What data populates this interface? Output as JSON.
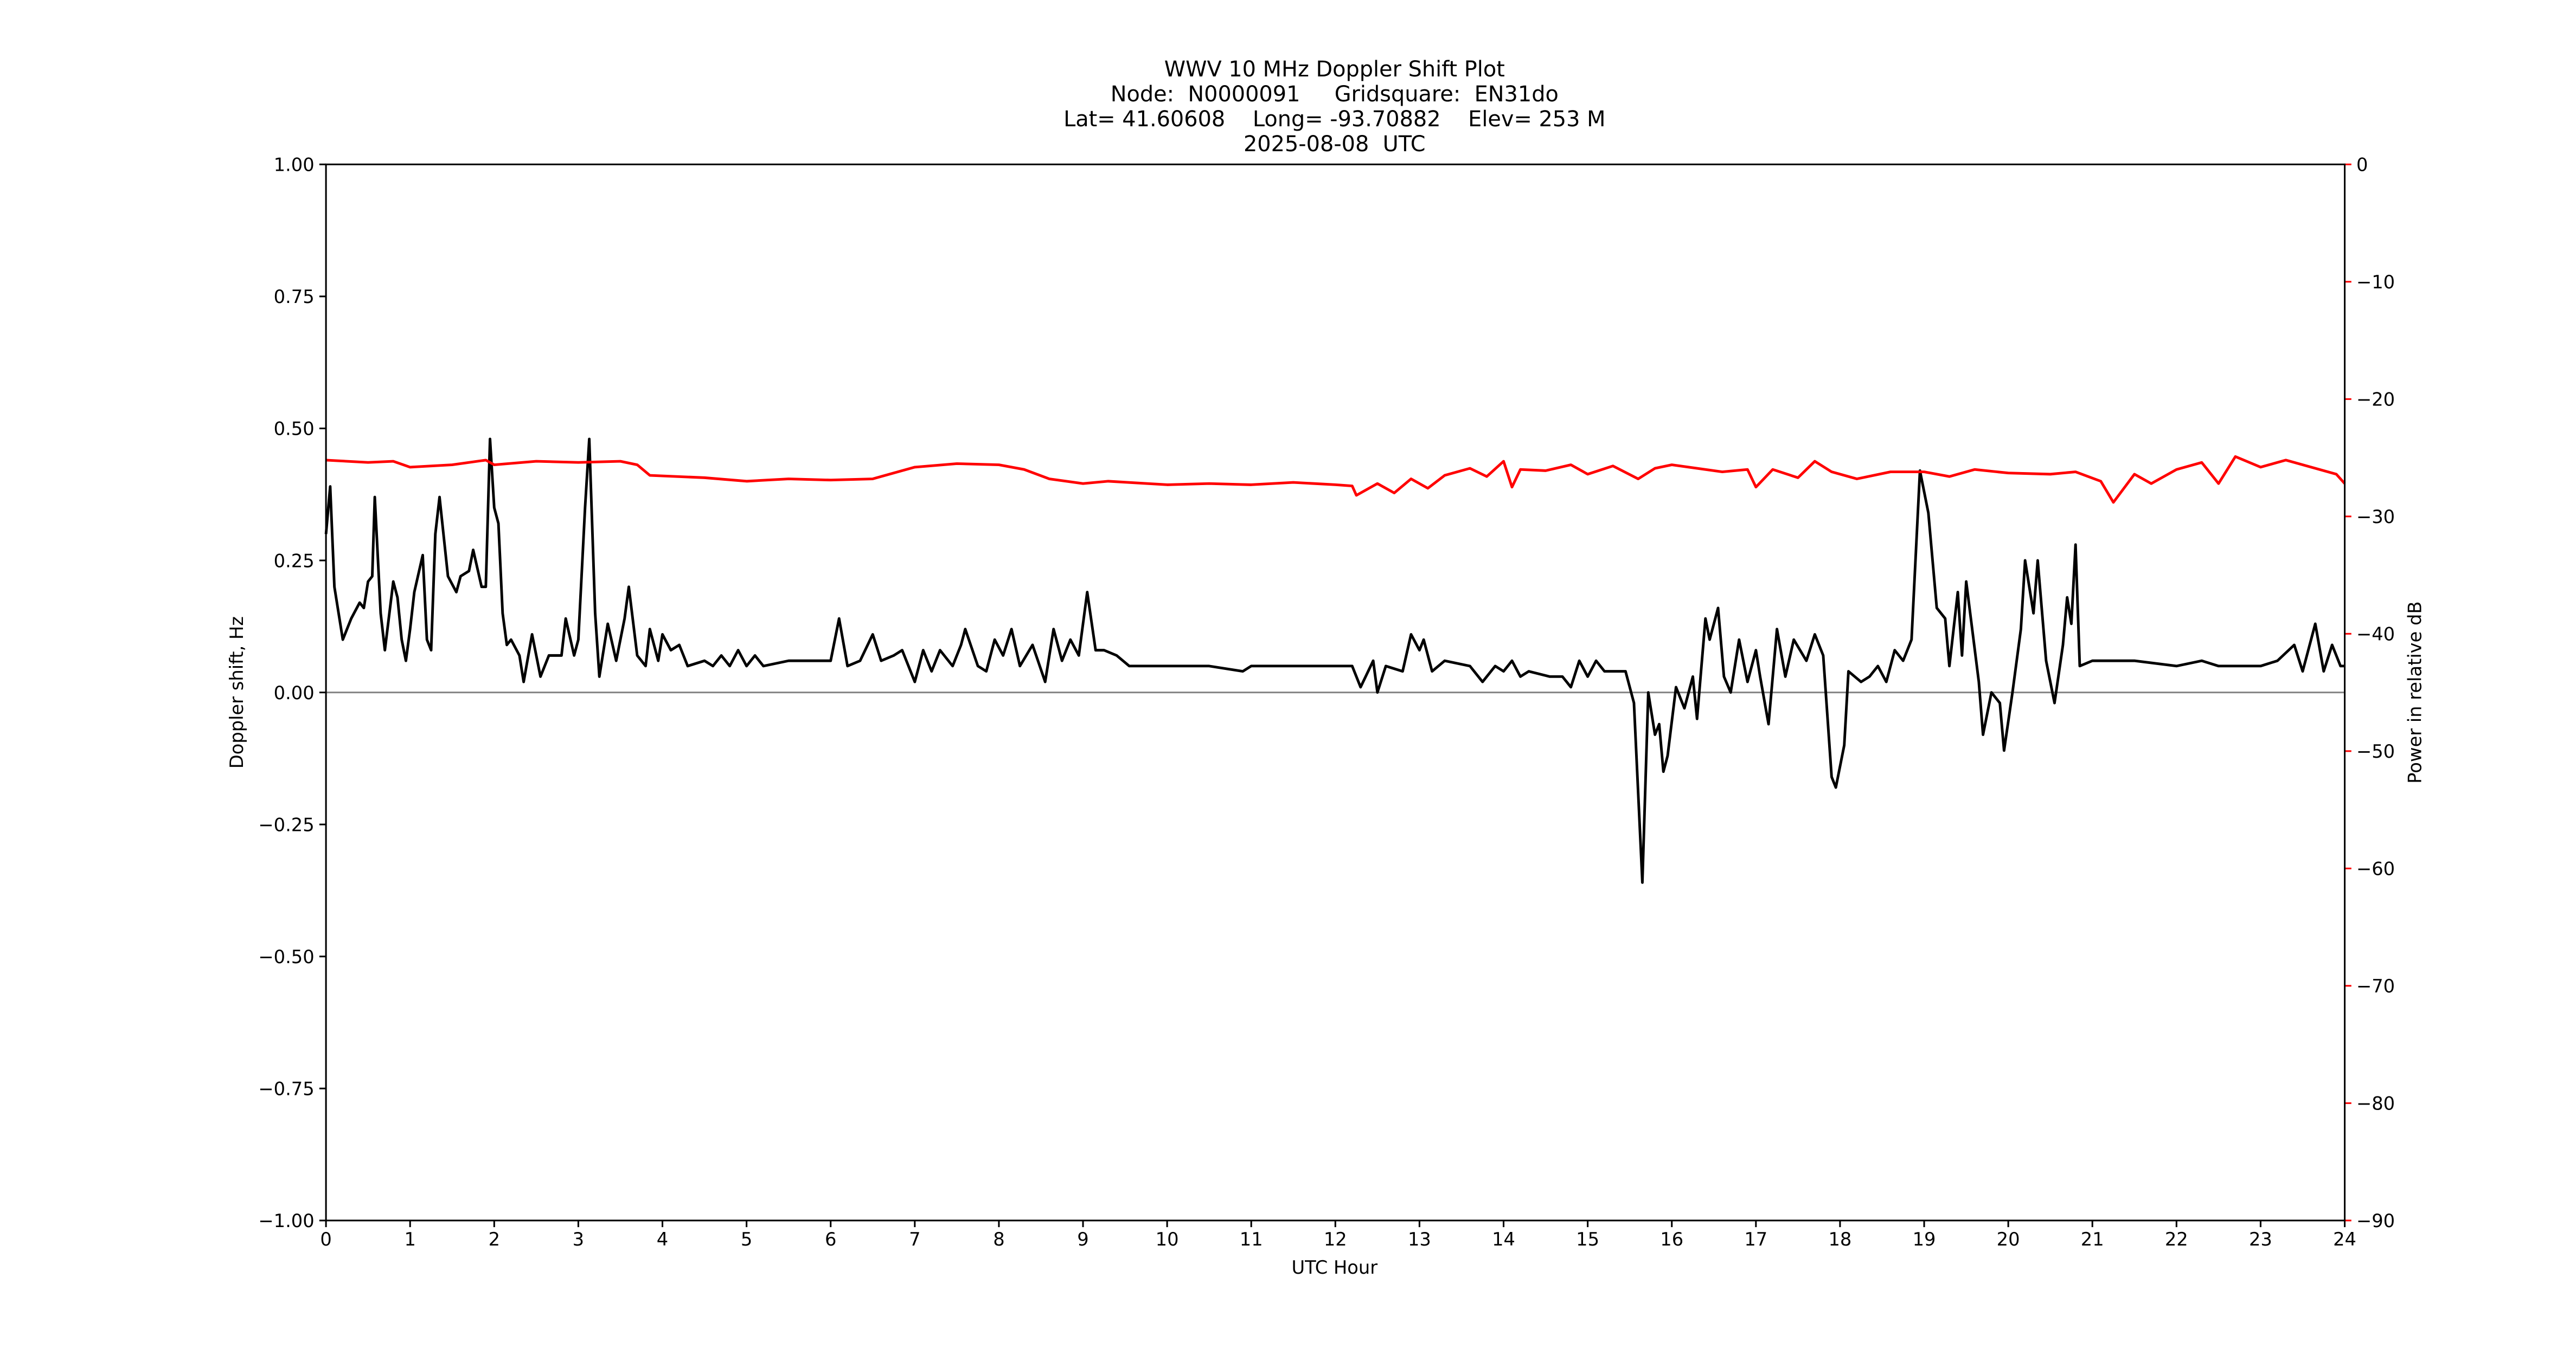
{
  "chart_data": {
    "type": "line",
    "title": [
      "WWV 10 MHz Doppler Shift Plot",
      "Node:  N0000091     Gridsquare:  EN31do",
      "Lat= 41.60608    Long= -93.70882    Elev= 253 M",
      "2025-08-08  UTC"
    ],
    "x_label": "UTC Hour",
    "y_label": "Doppler shift, Hz",
    "y2_label": "Power in relative dB",
    "xlim": [
      0,
      24
    ],
    "xticks": [
      0,
      1,
      2,
      3,
      4,
      5,
      6,
      7,
      8,
      9,
      10,
      11,
      12,
      13,
      14,
      15,
      16,
      17,
      18,
      19,
      20,
      21,
      22,
      23,
      24
    ],
    "ylim": [
      -1,
      1
    ],
    "yticks": [
      {
        "value": -1,
        "label": "−1.00"
      },
      {
        "value": -0.75,
        "label": "−0.75"
      },
      {
        "value": -0.5,
        "label": "−0.50"
      },
      {
        "value": -0.25,
        "label": "−0.25"
      },
      {
        "value": 0,
        "label": "0.00"
      },
      {
        "value": 0.25,
        "label": "0.25"
      },
      {
        "value": 0.5,
        "label": "0.50"
      },
      {
        "value": 0.75,
        "label": "0.75"
      },
      {
        "value": 1,
        "label": "1.00"
      }
    ],
    "y2lim": [
      -90,
      0
    ],
    "y2ticks": [
      {
        "value": -90,
        "label": "−90"
      },
      {
        "value": -80,
        "label": "−80"
      },
      {
        "value": -70,
        "label": "−70"
      },
      {
        "value": -60,
        "label": "−60"
      },
      {
        "value": -50,
        "label": "−50"
      },
      {
        "value": -40,
        "label": "−40"
      },
      {
        "value": -30,
        "label": "−30"
      },
      {
        "value": -20,
        "label": "−20"
      },
      {
        "value": -10,
        "label": "−10"
      },
      0
    ],
    "y2_color": "#ff0000",
    "reference_line": 0,
    "reference_color": "#888888",
    "series": [
      {
        "color": "#000000",
        "x": [
          0,
          0.05,
          0.1,
          0.2,
          0.3,
          0.4,
          0.45,
          0.5,
          0.55,
          0.58,
          0.65,
          0.7,
          0.8,
          0.85,
          0.9,
          0.95,
          1.0,
          1.05,
          1.15,
          1.2,
          1.25,
          1.3,
          1.35,
          1.45,
          1.55,
          1.6,
          1.7,
          1.75,
          1.85,
          1.9,
          1.95,
          2.0,
          2.05,
          2.1,
          2.15,
          2.2,
          2.3,
          2.35,
          2.45,
          2.55,
          2.65,
          2.8,
          2.85,
          2.95,
          3.0,
          3.08,
          3.13,
          3.2,
          3.25,
          3.35,
          3.45,
          3.55,
          3.6,
          3.7,
          3.8,
          3.85,
          3.95,
          4.0,
          4.1,
          4.2,
          4.3,
          4.5,
          4.6,
          4.7,
          4.8,
          4.9,
          5.0,
          5.1,
          5.2,
          5.5,
          6.0,
          6.1,
          6.2,
          6.35,
          6.5,
          6.6,
          6.75,
          6.85,
          7.0,
          7.1,
          7.2,
          7.3,
          7.45,
          7.55,
          7.6,
          7.75,
          7.85,
          7.95,
          8.05,
          8.15,
          8.25,
          8.4,
          8.55,
          8.65,
          8.75,
          8.85,
          8.95,
          9.05,
          9.15,
          9.25,
          9.4,
          9.55,
          10.0,
          10.5,
          10.9,
          11.0,
          11.5,
          12.0,
          12.2,
          12.3,
          12.45,
          12.5,
          12.6,
          12.8,
          12.9,
          13.0,
          13.05,
          13.15,
          13.3,
          13.6,
          13.75,
          13.9,
          14.0,
          14.1,
          14.2,
          14.3,
          14.55,
          14.7,
          14.8,
          14.9,
          15.0,
          15.1,
          15.2,
          15.45,
          15.55,
          15.65,
          15.72,
          15.8,
          15.85,
          15.9,
          15.95,
          16.05,
          16.15,
          16.25,
          16.3,
          16.4,
          16.45,
          16.55,
          16.62,
          16.7,
          16.8,
          16.9,
          17.0,
          17.05,
          17.15,
          17.25,
          17.35,
          17.45,
          17.6,
          17.7,
          17.8,
          17.9,
          17.95,
          18.05,
          18.1,
          18.25,
          18.35,
          18.45,
          18.55,
          18.65,
          18.75,
          18.85,
          18.95,
          19.05,
          19.15,
          19.25,
          19.3,
          19.4,
          19.45,
          19.5,
          19.65,
          19.7,
          19.8,
          19.9,
          19.95,
          20.05,
          20.15,
          20.2,
          20.3,
          20.35,
          20.45,
          20.55,
          20.65,
          20.7,
          20.75,
          20.8,
          20.85,
          21.0,
          21.5,
          22.0,
          22.3,
          22.5,
          23.0,
          23.2,
          23.4,
          23.5,
          23.65,
          23.75,
          23.85,
          23.95,
          24.0
        ],
        "values": [
          0.3,
          0.39,
          0.2,
          0.1,
          0.14,
          0.17,
          0.16,
          0.21,
          0.22,
          0.37,
          0.15,
          0.08,
          0.21,
          0.18,
          0.1,
          0.06,
          0.12,
          0.19,
          0.26,
          0.1,
          0.08,
          0.3,
          0.37,
          0.22,
          0.19,
          0.22,
          0.23,
          0.27,
          0.2,
          0.2,
          0.48,
          0.35,
          0.32,
          0.15,
          0.09,
          0.1,
          0.07,
          0.02,
          0.11,
          0.03,
          0.07,
          0.07,
          0.14,
          0.07,
          0.1,
          0.35,
          0.48,
          0.15,
          0.03,
          0.13,
          0.06,
          0.14,
          0.2,
          0.07,
          0.05,
          0.12,
          0.06,
          0.11,
          0.08,
          0.09,
          0.05,
          0.06,
          0.05,
          0.07,
          0.05,
          0.08,
          0.05,
          0.07,
          0.05,
          0.06,
          0.06,
          0.14,
          0.05,
          0.06,
          0.11,
          0.06,
          0.07,
          0.08,
          0.02,
          0.08,
          0.04,
          0.08,
          0.05,
          0.09,
          0.12,
          0.05,
          0.04,
          0.1,
          0.07,
          0.12,
          0.05,
          0.09,
          0.02,
          0.12,
          0.06,
          0.1,
          0.07,
          0.19,
          0.08,
          0.08,
          0.07,
          0.05,
          0.05,
          0.05,
          0.04,
          0.05,
          0.05,
          0.05,
          0.05,
          0.01,
          0.06,
          0.0,
          0.05,
          0.04,
          0.11,
          0.08,
          0.1,
          0.04,
          0.06,
          0.05,
          0.02,
          0.05,
          0.04,
          0.06,
          0.03,
          0.04,
          0.03,
          0.03,
          0.01,
          0.06,
          0.03,
          0.06,
          0.04,
          0.04,
          -0.02,
          -0.36,
          0.0,
          -0.08,
          -0.06,
          -0.15,
          -0.12,
          0.01,
          -0.03,
          0.03,
          -0.05,
          0.14,
          0.1,
          0.16,
          0.03,
          0.0,
          0.1,
          0.02,
          0.08,
          0.03,
          -0.06,
          0.12,
          0.03,
          0.1,
          0.06,
          0.11,
          0.07,
          -0.16,
          -0.18,
          -0.1,
          0.04,
          0.02,
          0.03,
          0.05,
          0.02,
          0.08,
          0.06,
          0.1,
          0.42,
          0.34,
          0.16,
          0.14,
          0.05,
          0.19,
          0.07,
          0.21,
          0.02,
          -0.08,
          0.0,
          -0.02,
          -0.11,
          0.0,
          0.12,
          0.25,
          0.15,
          0.25,
          0.06,
          -0.02,
          0.09,
          0.18,
          0.13,
          0.28,
          0.05,
          0.06,
          0.06,
          0.05,
          0.06,
          0.05,
          0.05,
          0.06,
          0.09,
          0.04,
          0.13,
          0.04,
          0.09,
          0.05,
          0.05
        ]
      },
      {
        "color": "#ff0000",
        "axis": "y2",
        "x": [
          0,
          0.5,
          0.8,
          1.0,
          1.5,
          1.9,
          2.0,
          2.5,
          3.0,
          3.5,
          3.7,
          3.85,
          4.5,
          5.0,
          5.5,
          6.0,
          6.5,
          6.8,
          7.0,
          7.5,
          8.0,
          8.3,
          8.6,
          9.0,
          9.3,
          10.0,
          10.5,
          11.0,
          11.5,
          12.0,
          12.2,
          12.25,
          12.5,
          12.7,
          12.9,
          13.1,
          13.3,
          13.6,
          13.8,
          14.0,
          14.1,
          14.2,
          14.5,
          14.8,
          15.0,
          15.3,
          15.6,
          15.8,
          16.0,
          16.3,
          16.6,
          16.9,
          17.0,
          17.2,
          17.5,
          17.7,
          17.9,
          18.2,
          18.6,
          19.0,
          19.3,
          19.6,
          20.0,
          20.5,
          20.8,
          21.1,
          21.25,
          21.5,
          21.7,
          22.0,
          22.3,
          22.5,
          22.7,
          23.0,
          23.3,
          23.6,
          23.9,
          24
        ],
        "values": [
          -25.2,
          -25.4,
          -25.3,
          -25.8,
          -25.6,
          -25.2,
          -25.6,
          -25.3,
          -25.4,
          -25.3,
          -25.6,
          -26.5,
          -26.7,
          -27.0,
          -26.8,
          -26.9,
          -26.8,
          -26.2,
          -25.8,
          -25.5,
          -25.6,
          -26.0,
          -26.8,
          -27.2,
          -27.0,
          -27.3,
          -27.2,
          -27.3,
          -27.1,
          -27.3,
          -27.4,
          -28.2,
          -27.2,
          -28.0,
          -26.8,
          -27.6,
          -26.5,
          -25.9,
          -26.6,
          -25.3,
          -27.5,
          -26.0,
          -26.1,
          -25.6,
          -26.4,
          -25.7,
          -26.8,
          -25.9,
          -25.6,
          -25.9,
          -26.2,
          -26.0,
          -27.5,
          -26.0,
          -26.7,
          -25.3,
          -26.2,
          -26.8,
          -26.2,
          -26.2,
          -26.6,
          -26.0,
          -26.3,
          -26.4,
          -26.2,
          -27.0,
          -28.8,
          -26.4,
          -27.2,
          -26.0,
          -25.4,
          -27.2,
          -24.9,
          -25.8,
          -25.2,
          -25.8,
          -26.4,
          -27.2
        ]
      }
    ]
  }
}
